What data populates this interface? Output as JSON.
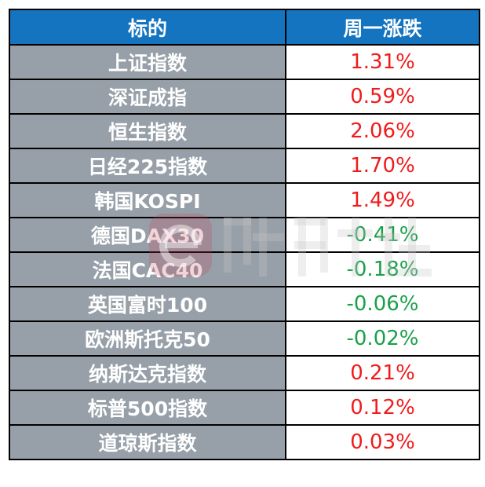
{
  "headers": [
    "标的",
    "周一涨跌"
  ],
  "colors": {
    "header_bg": "#1474c0",
    "name_bg": "#97a0a8",
    "up": "#f01c1c",
    "down": "#1aa04a"
  },
  "rows": [
    {
      "name": "上证指数",
      "change": "1.31%",
      "dir": "up"
    },
    {
      "name": "深证成指",
      "change": "0.59%",
      "dir": "up"
    },
    {
      "name": "恒生指数",
      "change": "2.06%",
      "dir": "up"
    },
    {
      "name": "日经225指数",
      "change": "1.70%",
      "dir": "up"
    },
    {
      "name": "韩国KOSPI",
      "change": "1.49%",
      "dir": "up"
    },
    {
      "name": "德国DAX30",
      "change": "-0.41%",
      "dir": "down"
    },
    {
      "name": "法国CAC40",
      "change": "-0.18%",
      "dir": "down"
    },
    {
      "name": "英国富时100",
      "change": "-0.06%",
      "dir": "down"
    },
    {
      "name": "欧洲斯托克50",
      "change": "-0.02%",
      "dir": "down"
    },
    {
      "name": "纳斯达克指数",
      "change": "0.21%",
      "dir": "up"
    },
    {
      "name": "标普500指数",
      "change": "0.12%",
      "dir": "up"
    },
    {
      "name": "道琼斯指数",
      "change": "0.03%",
      "dir": "up"
    }
  ],
  "watermark": "财联社"
}
